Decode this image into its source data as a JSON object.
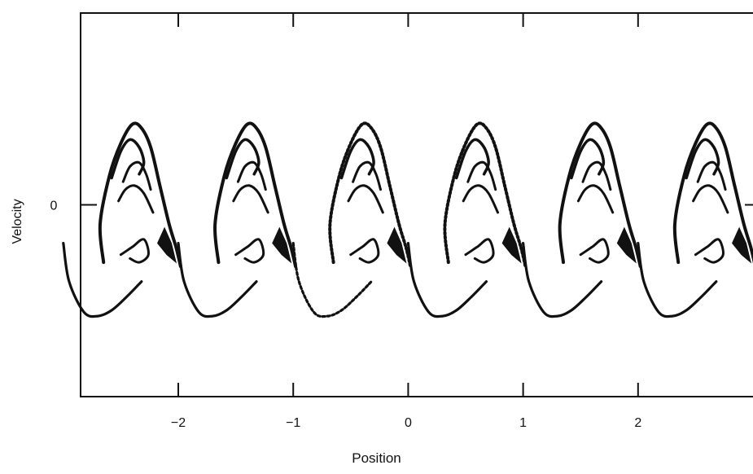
{
  "chart_data": {
    "type": "scatter",
    "title": "",
    "xlabel": "Position",
    "ylabel": "Velocity",
    "xlim": [
      -2.85,
      3.0
    ],
    "ylim": [
      -1.0,
      1.0
    ],
    "x_ticks": [
      -2,
      -1,
      0,
      1,
      2
    ],
    "x_tick_labels": [
      "−2",
      "−1",
      "0",
      "1",
      "2"
    ],
    "y_ticks": [
      0
    ],
    "y_tick_labels": [
      "0"
    ],
    "grid": false,
    "legend": "none",
    "series": [
      {
        "pattern": "periodic vortex (cat's-eye) spiral, repeated each unit of position",
        "period": 1,
        "vortex_centers_x": [
          -2.4,
          -1.4,
          -0.4,
          0.6,
          1.6,
          2.6
        ],
        "center_velocity": -0.3,
        "outer_spiral_max_velocity": 0.42,
        "outer_spiral_min_velocity": -0.58,
        "color": "#111111"
      }
    ]
  }
}
